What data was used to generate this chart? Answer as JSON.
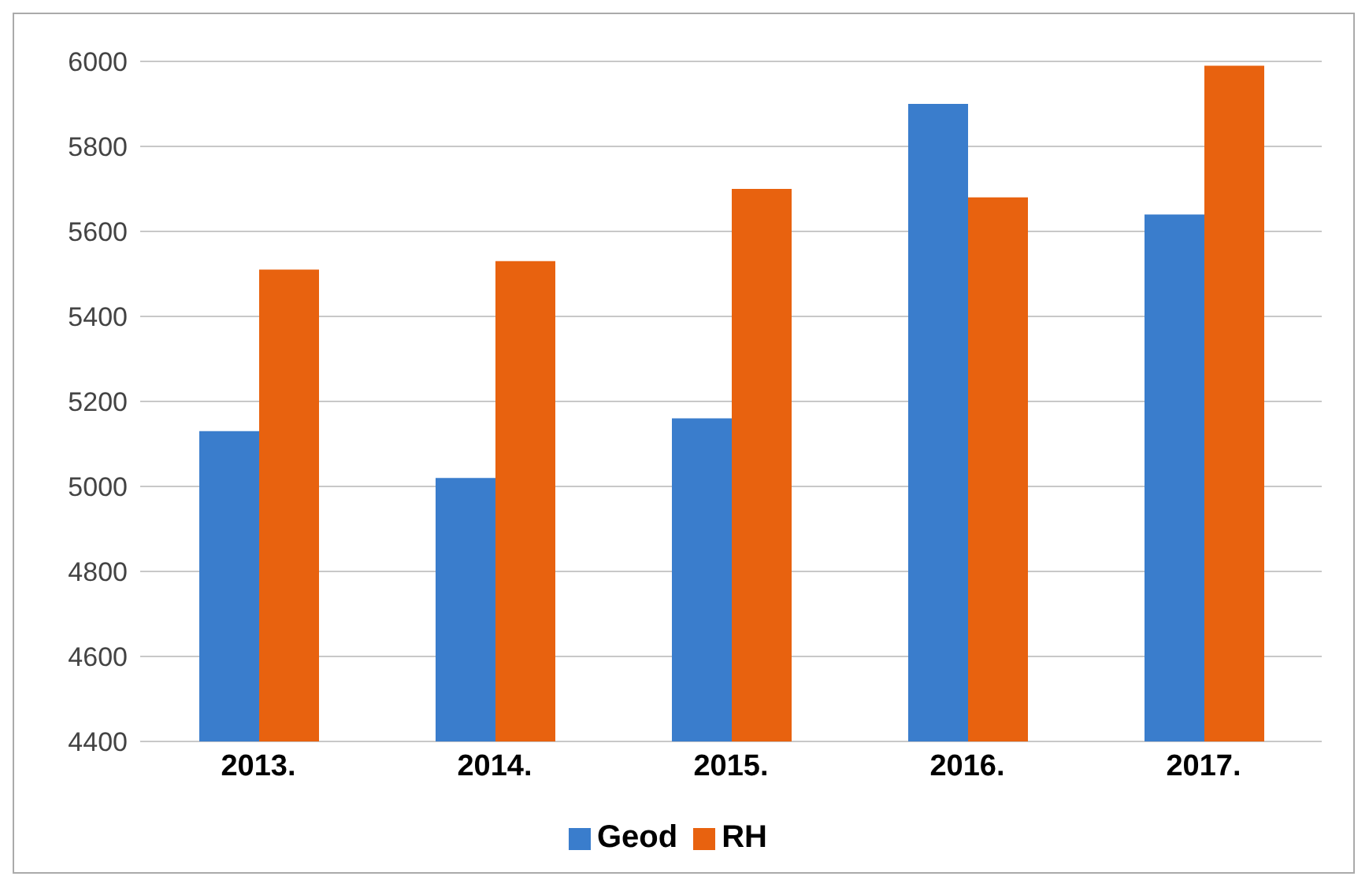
{
  "chart_data": {
    "type": "bar",
    "categories": [
      "2013.",
      "2014.",
      "2015.",
      "2016.",
      "2017."
    ],
    "series": [
      {
        "name": "Geod",
        "color": "#3a7dcc",
        "values": [
          5130,
          5020,
          5160,
          5900,
          5640
        ]
      },
      {
        "name": "RH",
        "color": "#e8620f",
        "values": [
          5510,
          5530,
          5700,
          5680,
          5990
        ]
      }
    ],
    "ylim": [
      4400,
      6000
    ],
    "yticks": [
      4400,
      4600,
      4800,
      5000,
      5200,
      5400,
      5600,
      5800,
      6000
    ],
    "grid": "y",
    "legend": "bottom"
  }
}
